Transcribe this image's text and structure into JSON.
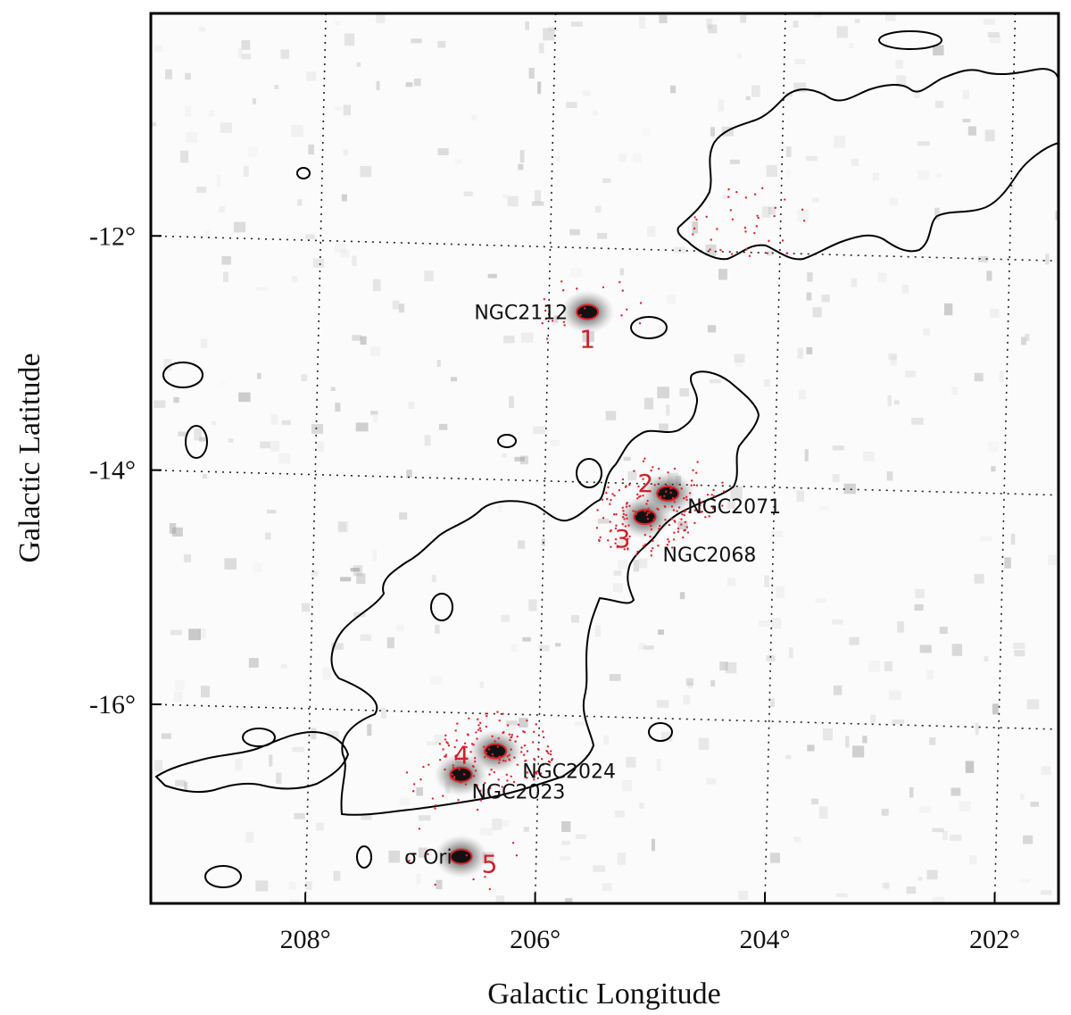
{
  "chart_data": {
    "type": "scatter",
    "xlabel": "Galactic Longitude",
    "ylabel": "Galactic Latitude",
    "x_ticks": [
      "208°",
      "206°",
      "204°",
      "202°"
    ],
    "y_ticks": [
      "-12°",
      "-14°",
      "-16°"
    ],
    "x_tick_values": [
      208,
      206,
      204,
      202
    ],
    "y_tick_values": [
      -12,
      -14,
      -16
    ],
    "xlim": [
      209.5,
      201.6
    ],
    "ylim": [
      -17.7,
      -10.1
    ],
    "grid": true,
    "background": "greyscale emission map with black contours",
    "marker_color": "#e0242c",
    "objects": [
      {
        "name": "NGC2112",
        "number": "1",
        "l": 205.7,
        "b": -12.65
      },
      {
        "name": "NGC2071",
        "number": "2",
        "l": 205.0,
        "b": -14.2
      },
      {
        "name": "NGC2068",
        "number": "3",
        "l": 205.2,
        "b": -14.4
      },
      {
        "name": "NGC2024",
        "number": "4",
        "l": 206.5,
        "b": -16.4
      },
      {
        "name": "NGC2023",
        "number": "",
        "l": 206.8,
        "b": -16.6
      },
      {
        "name": "σ Ori",
        "number": "5",
        "l": 206.8,
        "b": -17.3
      }
    ]
  }
}
